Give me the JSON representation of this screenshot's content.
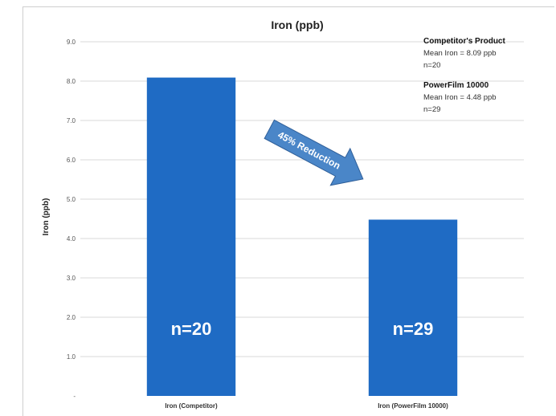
{
  "chart_data": {
    "type": "bar",
    "title": "Iron (ppb)",
    "ylabel": "Iron (ppb)",
    "xlabel": "",
    "ylim": [
      0,
      9
    ],
    "yticks": [
      "9.0",
      "8.0",
      "7.0",
      "6.0",
      "5.0",
      "4.0",
      "3.0",
      "2.0",
      "1.0",
      "-"
    ],
    "ytick_values": [
      9,
      8,
      7,
      6,
      5,
      4,
      3,
      2,
      1,
      0
    ],
    "grid": true,
    "legend": "none",
    "categories": [
      "Iron (Competitor)",
      "Iron (PowerFilm 10000)"
    ],
    "values": [
      8.09,
      4.48
    ],
    "bar_labels": [
      "n=20",
      "n=29"
    ],
    "bar_color": "#1f6bc4",
    "annotations": [
      {
        "heading": "Competitor's Product",
        "lines": [
          "Mean Iron = 8.09 ppb",
          "n=20"
        ]
      },
      {
        "heading": "PowerFilm 10000",
        "lines": [
          "Mean Iron = 4.48 ppb",
          "n=29"
        ]
      }
    ],
    "arrow_label": "45% Reduction",
    "arrow_color": "#4a86c8"
  }
}
